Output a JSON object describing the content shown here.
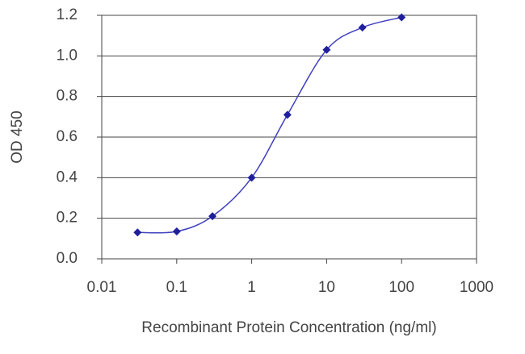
{
  "chart_data": {
    "type": "line",
    "x_label": "Recombinant Protein Concentration (ng/ml)",
    "y_label": "OD 450",
    "x_scale": "log",
    "grid": true,
    "color": "#1f1f9a",
    "x": [
      0.03,
      0.1,
      0.3,
      1,
      3,
      10,
      30,
      100
    ],
    "values": [
      0.13,
      0.135,
      0.21,
      0.4,
      0.71,
      1.03,
      1.14,
      1.19
    ],
    "xlim": [
      0.01,
      1000
    ],
    "xticks": [
      0.01,
      0.1,
      1,
      10,
      100,
      1000
    ],
    "ylim": [
      0,
      1.2
    ],
    "yticks": [
      {
        "value": 0,
        "label": "0.0"
      },
      0.2,
      0.4,
      0.6,
      0.8,
      {
        "value": 1,
        "label": "1.0"
      },
      1.2
    ]
  }
}
